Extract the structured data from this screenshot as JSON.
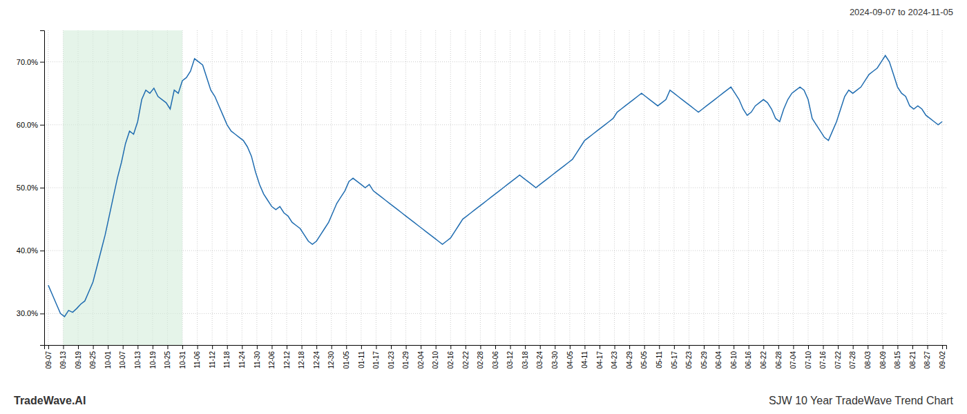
{
  "chart_data": {
    "type": "line",
    "annotations": [
      "2024-09-07 to 2024-11-05",
      "TradeWave.AI",
      "SJW 10 Year TradeWave Trend Chart"
    ],
    "color": "#1f6cb0",
    "grid": true,
    "xlim": [
      -1,
      221
    ],
    "xticks": [
      {
        "value": 0,
        "label": "09-07"
      },
      {
        "value": 3.6666666666666665,
        "label": "09-13"
      },
      {
        "value": 7.333333333333333,
        "label": "09-19"
      },
      {
        "value": 11,
        "label": "09-25"
      },
      {
        "value": 14.666666666666666,
        "label": "10-01"
      },
      {
        "value": 18.333333333333332,
        "label": "10-07"
      },
      {
        "value": 22,
        "label": "10-13"
      },
      {
        "value": 25.666666666666664,
        "label": "10-19"
      },
      {
        "value": 29.333333333333332,
        "label": "10-25"
      },
      {
        "value": 33,
        "label": "10-31"
      },
      {
        "value": 36.666666666666664,
        "label": "11-06"
      },
      {
        "value": 40.33333333333333,
        "label": "11-12"
      },
      {
        "value": 44,
        "label": "11-18"
      },
      {
        "value": 47.666666666666664,
        "label": "11-24"
      },
      {
        "value": 51.33333333333333,
        "label": "11-30"
      },
      {
        "value": 55,
        "label": "12-06"
      },
      {
        "value": 58.666666666666664,
        "label": "12-12"
      },
      {
        "value": 62.33333333333333,
        "label": "12-18"
      },
      {
        "value": 66,
        "label": "12-24"
      },
      {
        "value": 69.66666666666666,
        "label": "12-30"
      },
      {
        "value": 73.33333333333333,
        "label": "01-05"
      },
      {
        "value": 77,
        "label": "01-11"
      },
      {
        "value": 80.66666666666666,
        "label": "01-17"
      },
      {
        "value": 84.33333333333333,
        "label": "01-23"
      },
      {
        "value": 88,
        "label": "01-29"
      },
      {
        "value": 91.66666666666666,
        "label": "02-04"
      },
      {
        "value": 95.33333333333333,
        "label": "02-10"
      },
      {
        "value": 99,
        "label": "02-16"
      },
      {
        "value": 102.66666666666666,
        "label": "02-22"
      },
      {
        "value": 106.33333333333333,
        "label": "02-28"
      },
      {
        "value": 110,
        "label": "03-06"
      },
      {
        "value": 113.66666666666666,
        "label": "03-12"
      },
      {
        "value": 117.33333333333333,
        "label": "03-18"
      },
      {
        "value": 121,
        "label": "03-24"
      },
      {
        "value": 124.66666666666666,
        "label": "03-30"
      },
      {
        "value": 128.33333333333331,
        "label": "04-05"
      },
      {
        "value": 132,
        "label": "04-11"
      },
      {
        "value": 135.66666666666666,
        "label": "04-17"
      },
      {
        "value": 139.33333333333331,
        "label": "04-23"
      },
      {
        "value": 143,
        "label": "04-29"
      },
      {
        "value": 146.66666666666666,
        "label": "05-05"
      },
      {
        "value": 150.33333333333331,
        "label": "05-11"
      },
      {
        "value": 154,
        "label": "05-17"
      },
      {
        "value": 157.66666666666666,
        "label": "05-23"
      },
      {
        "value": 161.33333333333331,
        "label": "05-29"
      },
      {
        "value": 165,
        "label": "06-04"
      },
      {
        "value": 168.66666666666666,
        "label": "06-10"
      },
      {
        "value": 172.33333333333331,
        "label": "06-16"
      },
      {
        "value": 176,
        "label": "06-22"
      },
      {
        "value": 179.66666666666666,
        "label": "06-28"
      },
      {
        "value": 183.33333333333331,
        "label": "07-04"
      },
      {
        "value": 187,
        "label": "07-10"
      },
      {
        "value": 190.66666666666666,
        "label": "07-16"
      },
      {
        "value": 194.33333333333331,
        "label": "07-22"
      },
      {
        "value": 198,
        "label": "07-28"
      },
      {
        "value": 201.66666666666666,
        "label": "08-03"
      },
      {
        "value": 205.33333333333331,
        "label": "08-09"
      },
      {
        "value": 209,
        "label": "08-15"
      },
      {
        "value": 212.66666666666666,
        "label": "08-21"
      },
      {
        "value": 216.33333333333331,
        "label": "08-27"
      },
      {
        "value": 220,
        "label": "09-02"
      }
    ],
    "ylim": [
      25,
      75
    ],
    "yticks": [
      {
        "value": 30,
        "label": "30.0%"
      },
      {
        "value": 40,
        "label": "40.0%"
      },
      {
        "value": 50,
        "label": "50.0%"
      },
      {
        "value": 60,
        "label": "60.0%"
      },
      {
        "value": 70,
        "label": "70.0%"
      }
    ],
    "shade": {
      "start": 3.6666666666666665,
      "end": 33,
      "color": "#d4edda"
    },
    "values": [
      34.5,
      33.0,
      31.5,
      30.0,
      29.5,
      30.5,
      30.2,
      30.8,
      31.5,
      32.0,
      33.5,
      35.0,
      37.5,
      40.0,
      42.5,
      45.5,
      48.5,
      51.5,
      54.0,
      57.0,
      59.0,
      58.5,
      60.5,
      64.0,
      65.5,
      65.0,
      65.8,
      64.5,
      64.0,
      63.5,
      62.5,
      65.5,
      65.0,
      67.0,
      67.5,
      68.5,
      70.5,
      70.0,
      69.5,
      67.5,
      65.5,
      64.5,
      63.0,
      61.5,
      60.0,
      59.0,
      58.5,
      58.0,
      57.5,
      56.5,
      55.0,
      52.5,
      50.5,
      49.0,
      48.0,
      47.0,
      46.5,
      47.0,
      46.0,
      45.5,
      44.5,
      44.0,
      43.5,
      42.5,
      41.5,
      41.0,
      41.5,
      42.5,
      43.5,
      44.5,
      46.0,
      47.5,
      48.5,
      49.5,
      51.0,
      51.5,
      51.0,
      50.5,
      50.0,
      50.5,
      49.5,
      49.0,
      48.5,
      48.0,
      47.5,
      47.0,
      46.5,
      46.0,
      45.5,
      45.0,
      44.5,
      44.0,
      43.5,
      43.0,
      42.5,
      42.0,
      41.5,
      41.0,
      41.5,
      42.0,
      43.0,
      44.0,
      45.0,
      45.5,
      46.0,
      46.5,
      47.0,
      47.5,
      48.0,
      48.5,
      49.0,
      49.5,
      50.0,
      50.5,
      51.0,
      51.5,
      52.0,
      51.5,
      51.0,
      50.5,
      50.0,
      50.5,
      51.0,
      51.5,
      52.0,
      52.5,
      53.0,
      53.5,
      54.0,
      54.5,
      55.5,
      56.5,
      57.5,
      58.0,
      58.5,
      59.0,
      59.5,
      60.0,
      60.5,
      61.0,
      62.0,
      62.5,
      63.0,
      63.5,
      64.0,
      64.5,
      65.0,
      64.5,
      64.0,
      63.5,
      63.0,
      63.5,
      64.0,
      65.5,
      65.0,
      64.5,
      64.0,
      63.5,
      63.0,
      62.5,
      62.0,
      62.5,
      63.0,
      63.5,
      64.0,
      64.5,
      65.0,
      65.5,
      66.0,
      65.0,
      64.0,
      62.5,
      61.5,
      62.0,
      63.0,
      63.5,
      64.0,
      63.5,
      62.5,
      61.0,
      60.5,
      62.5,
      64.0,
      65.0,
      65.5,
      66.0,
      65.5,
      64.0,
      61.0,
      60.0,
      59.0,
      58.0,
      57.5,
      59.0,
      60.5,
      62.5,
      64.5,
      65.5,
      65.0,
      65.5,
      66.0,
      67.0,
      68.0,
      68.5,
      69.0,
      70.0,
      71.0,
      70.0,
      68.0,
      66.0,
      65.0,
      64.5,
      63.0,
      62.5,
      63.0,
      62.5,
      61.5,
      61.0,
      60.5,
      60.0,
      60.5
    ]
  }
}
